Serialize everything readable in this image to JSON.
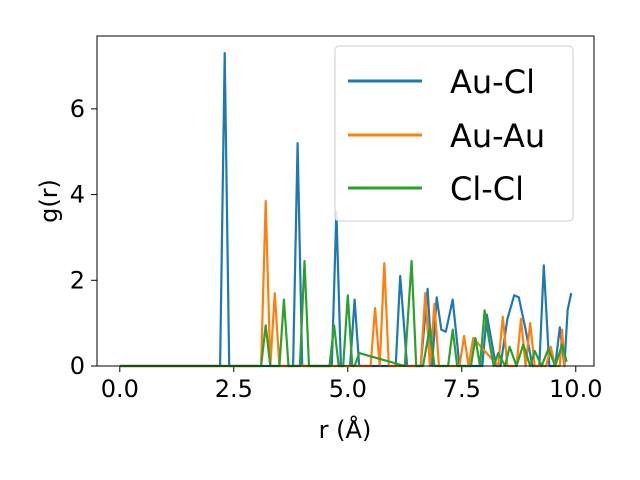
{
  "chart_data": {
    "type": "line",
    "title": "",
    "xlabel": "r (Å)",
    "ylabel": "g(r)",
    "xlim": [
      -0.5,
      10.4
    ],
    "ylim": [
      0,
      7.7
    ],
    "xticks": [
      0.0,
      2.5,
      5.0,
      7.5,
      10.0
    ],
    "xtick_labels": [
      "0.0",
      "2.5",
      "5.0",
      "7.5",
      "10.0"
    ],
    "yticks": [
      0,
      2,
      4,
      6
    ],
    "ytick_labels": [
      "0",
      "2",
      "4",
      "6"
    ],
    "grid": false,
    "legend_position": "top-right",
    "series": [
      {
        "name": "Au-Cl",
        "color": "#1f77b4",
        "x": [
          0.0,
          2.15,
          2.2,
          2.3,
          2.4,
          3.8,
          3.9,
          4.0,
          4.65,
          4.75,
          4.85,
          5.05,
          5.15,
          5.25,
          6.05,
          6.15,
          6.3,
          6.6,
          6.75,
          6.85,
          6.95,
          7.05,
          7.15,
          7.3,
          7.45,
          7.95,
          8.05,
          8.25,
          8.35,
          8.5,
          8.65,
          8.75,
          8.9,
          9.05,
          9.2,
          9.3,
          9.42,
          9.55,
          9.65,
          9.75,
          9.82,
          9.9
        ],
        "y": [
          0.0,
          0.0,
          0.0,
          7.3,
          0.0,
          0.0,
          5.2,
          0.0,
          0.0,
          3.6,
          0.0,
          0.0,
          1.55,
          0.0,
          0.0,
          2.1,
          0.0,
          0.0,
          1.8,
          0.0,
          1.6,
          0.85,
          0.8,
          1.55,
          0.0,
          0.0,
          1.2,
          0.0,
          0.0,
          1.1,
          1.65,
          1.6,
          0.85,
          0.0,
          0.0,
          2.35,
          0.0,
          0.0,
          0.9,
          0.0,
          1.3,
          1.7
        ]
      },
      {
        "name": "Au-Au",
        "color": "#ff7f0e",
        "x": [
          0.0,
          3.1,
          3.2,
          3.3,
          3.4,
          3.5,
          5.5,
          5.6,
          5.7,
          5.8,
          5.9,
          6.6,
          6.7,
          6.8,
          6.9,
          7.0,
          7.45,
          7.55,
          7.65,
          7.75,
          8.3,
          8.4,
          8.5,
          8.7,
          8.8,
          8.9,
          9.0,
          9.1,
          9.35,
          9.45,
          9.55,
          9.65,
          9.7,
          9.75
        ],
        "y": [
          0.0,
          0.0,
          3.85,
          0.0,
          1.7,
          0.0,
          0.0,
          1.35,
          0.0,
          2.4,
          0.0,
          0.0,
          1.7,
          0.0,
          1.45,
          0.0,
          0.0,
          0.7,
          0.0,
          0.65,
          0.0,
          1.15,
          0.0,
          0.0,
          1.1,
          0.0,
          1.0,
          0.0,
          0.0,
          0.45,
          0.0,
          0.0,
          0.85,
          0.0
        ]
      },
      {
        "name": "Cl-Cl",
        "color": "#2ca02c",
        "x": [
          0.0,
          3.1,
          3.2,
          3.3,
          3.5,
          3.6,
          3.7,
          3.95,
          4.05,
          4.15,
          4.6,
          4.7,
          4.8,
          4.9,
          5.0,
          5.1,
          5.15,
          5.25,
          6.25,
          6.4,
          6.5,
          6.65,
          6.8,
          6.9,
          7.2,
          7.3,
          7.4,
          7.7,
          7.8,
          7.9,
          8.0,
          8.1,
          8.2,
          8.3,
          8.45,
          8.55,
          8.7,
          8.85,
          9.0,
          9.1,
          9.25,
          9.4,
          9.55,
          9.7,
          9.8
        ],
        "y": [
          0.0,
          0.0,
          0.95,
          0.0,
          0.0,
          1.55,
          0.0,
          0.0,
          2.45,
          0.0,
          0.0,
          0.95,
          0.0,
          0.0,
          1.65,
          0.0,
          0.0,
          0.3,
          0.0,
          2.45,
          0.0,
          0.0,
          0.9,
          0.0,
          0.0,
          0.85,
          0.0,
          0.0,
          0.65,
          0.0,
          1.3,
          0.6,
          0.0,
          0.3,
          0.0,
          0.45,
          0.0,
          0.5,
          0.0,
          0.35,
          0.0,
          0.4,
          0.0,
          0.5,
          0.1
        ]
      }
    ]
  }
}
